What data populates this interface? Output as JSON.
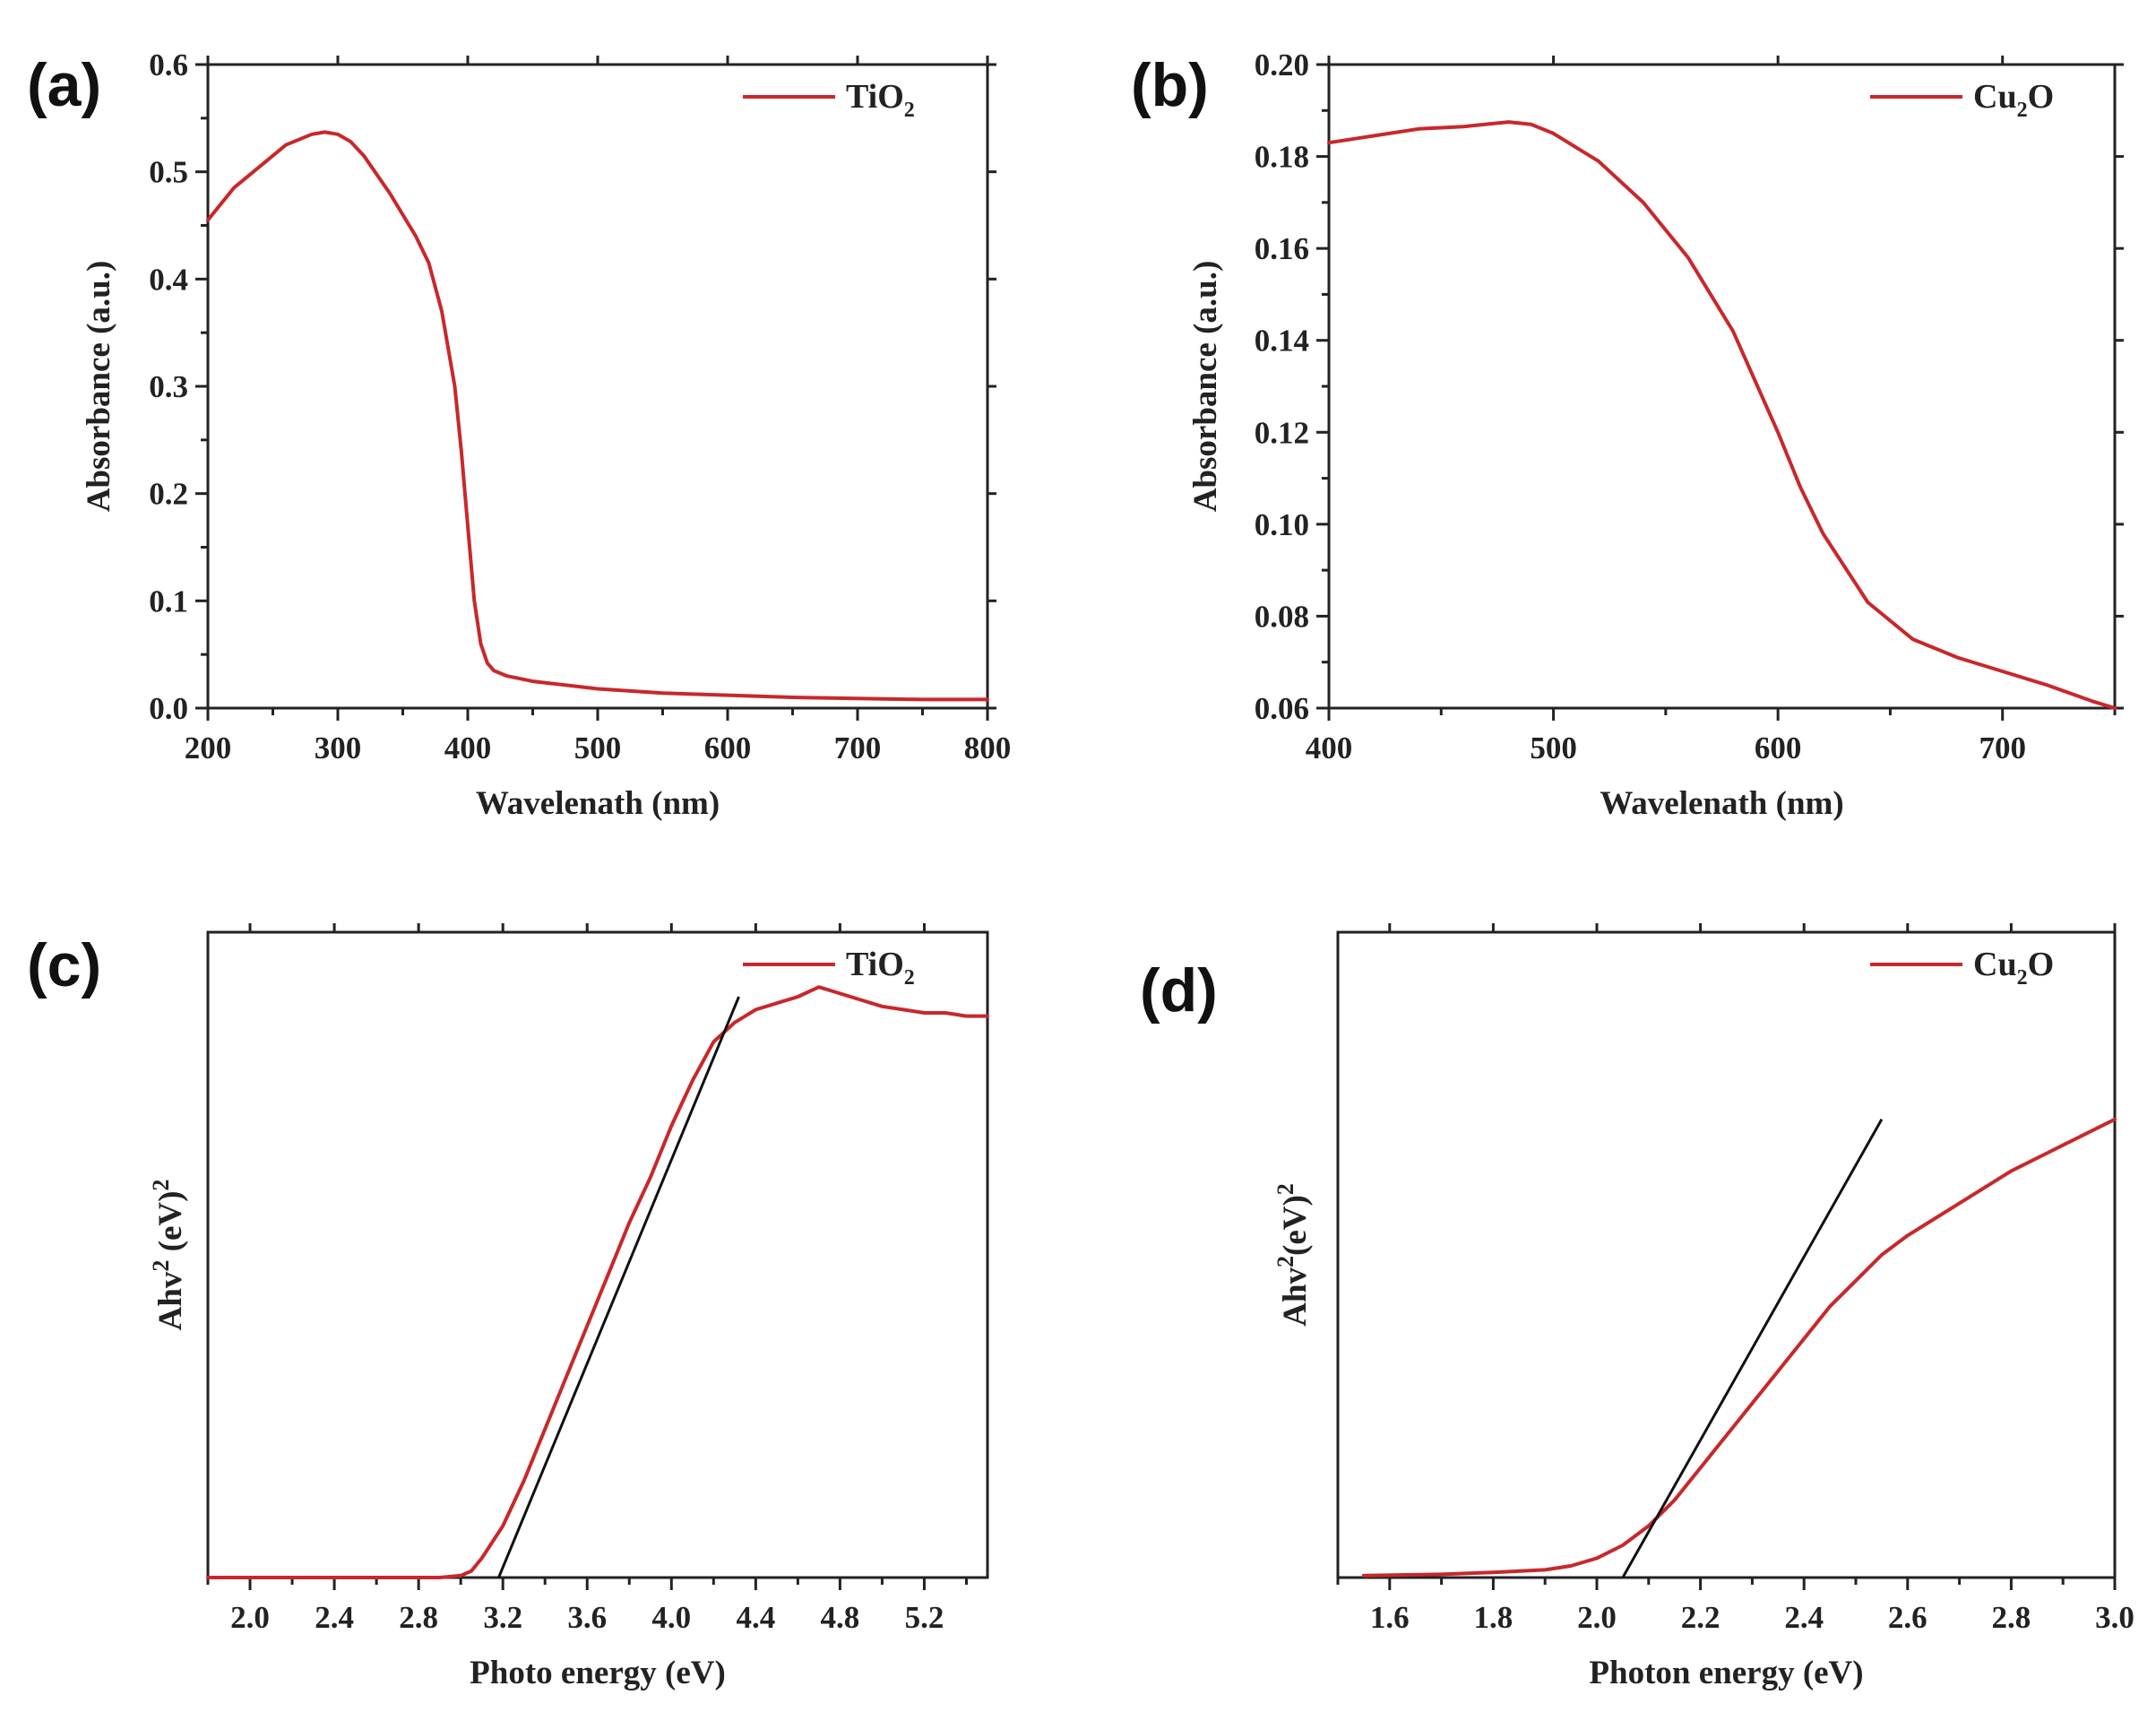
{
  "colors": {
    "series": "#c8282b",
    "fit": "#111111",
    "axis": "#222222"
  },
  "chart_data": [
    {
      "id": "a",
      "panel_label": "(a)",
      "type": "line",
      "xlabel": "Wavelenath (nm)",
      "ylabel": "Absorbance (a.u.)",
      "xlim": [
        200,
        800
      ],
      "ylim": [
        0,
        0.6
      ],
      "xticks": [
        200,
        300,
        400,
        500,
        600,
        700,
        800
      ],
      "xtick_labels": [
        "200",
        "300",
        "400",
        "500",
        "600",
        "700",
        "800"
      ],
      "yticks": [
        0,
        0.1,
        0.2,
        0.3,
        0.4,
        0.5,
        0.6
      ],
      "ytick_labels": [
        "0.0",
        "0.1",
        "0.2",
        "0.3",
        "0.4",
        "0.5",
        "0.6"
      ],
      "legend": {
        "base": "TiO",
        "sub": "2",
        "placement": "top-right"
      },
      "series": [
        {
          "name": "TiO2",
          "x": [
            200,
            220,
            240,
            260,
            280,
            290,
            300,
            310,
            320,
            340,
            360,
            370,
            380,
            390,
            395,
            400,
            405,
            410,
            415,
            420,
            430,
            450,
            500,
            550,
            600,
            650,
            700,
            750,
            800
          ],
          "y": [
            0.455,
            0.485,
            0.505,
            0.525,
            0.535,
            0.537,
            0.535,
            0.528,
            0.515,
            0.48,
            0.44,
            0.415,
            0.37,
            0.3,
            0.24,
            0.17,
            0.1,
            0.06,
            0.042,
            0.035,
            0.03,
            0.025,
            0.018,
            0.014,
            0.012,
            0.01,
            0.009,
            0.008,
            0.008
          ]
        }
      ]
    },
    {
      "id": "b",
      "panel_label": "(b)",
      "type": "line",
      "xlabel": "Wavelenath (nm)",
      "ylabel": "Absorbance (a.u.)",
      "xlim": [
        400,
        750
      ],
      "ylim": [
        0.06,
        0.2
      ],
      "xticks": [
        400,
        500,
        600,
        700
      ],
      "xtick_labels": [
        "400",
        "500",
        "600",
        "700"
      ],
      "yticks": [
        0.06,
        0.08,
        0.1,
        0.12,
        0.14,
        0.16,
        0.18,
        0.2
      ],
      "ytick_labels": [
        "0.06",
        "0.08",
        "0.10",
        "0.12",
        "0.14",
        "0.16",
        "0.18",
        "0.20"
      ],
      "legend": {
        "base": "Cu",
        "sub": "2",
        "tail": "O",
        "placement": "top-right"
      },
      "series": [
        {
          "name": "Cu2O",
          "x": [
            400,
            420,
            440,
            460,
            480,
            490,
            500,
            520,
            540,
            560,
            580,
            600,
            610,
            620,
            640,
            660,
            680,
            700,
            720,
            740,
            750
          ],
          "y": [
            0.183,
            0.1845,
            0.186,
            0.1865,
            0.1875,
            0.187,
            0.185,
            0.179,
            0.17,
            0.158,
            0.142,
            0.12,
            0.108,
            0.098,
            0.083,
            0.075,
            0.071,
            0.068,
            0.065,
            0.0615,
            0.06
          ]
        }
      ]
    },
    {
      "id": "c",
      "panel_label": "(c)",
      "type": "line",
      "xlabel": "Photo energy (eV)",
      "ylabel_base": "Ahv",
      "ylabel_sup": "2",
      "ylabel_mid": " (eV)",
      "ylabel_sup2": "2",
      "xlim": [
        1.8,
        5.5
      ],
      "ylim": [
        0,
        1
      ],
      "xticks": [
        2.0,
        2.4,
        2.8,
        3.2,
        3.6,
        4.0,
        4.4,
        4.8,
        5.2
      ],
      "xtick_labels": [
        "2.0",
        "2.4",
        "2.8",
        "3.2",
        "3.6",
        "4.0",
        "4.4",
        "4.8",
        "5.2"
      ],
      "yticks": [],
      "legend": {
        "base": "TiO",
        "sub": "2",
        "placement": "top-right"
      },
      "series": [
        {
          "name": "TiO2",
          "x": [
            1.8,
            2.2,
            2.6,
            2.9,
            3.0,
            3.05,
            3.1,
            3.2,
            3.3,
            3.4,
            3.5,
            3.6,
            3.7,
            3.8,
            3.9,
            4.0,
            4.1,
            4.2,
            4.3,
            4.4,
            4.5,
            4.6,
            4.7,
            4.8,
            4.9,
            5.0,
            5.1,
            5.2,
            5.3,
            5.4,
            5.5
          ],
          "y": [
            0,
            0,
            0,
            0,
            0.003,
            0.01,
            0.03,
            0.08,
            0.15,
            0.23,
            0.31,
            0.39,
            0.47,
            0.55,
            0.62,
            0.7,
            0.77,
            0.83,
            0.86,
            0.88,
            0.89,
            0.9,
            0.915,
            0.905,
            0.895,
            0.885,
            0.88,
            0.875,
            0.875,
            0.87,
            0.87
          ]
        }
      ],
      "fit_line": {
        "x": [
          3.18,
          4.32
        ],
        "y": [
          0,
          0.9
        ]
      }
    },
    {
      "id": "d",
      "panel_label": "(d)",
      "type": "line",
      "xlabel": "Photon energy (eV)",
      "ylabel_base": "Ahv",
      "ylabel_sup": "2",
      "ylabel_mid": "(eV)",
      "ylabel_sup2": "2",
      "xlim": [
        1.5,
        3.0
      ],
      "ylim": [
        0,
        1
      ],
      "xticks": [
        1.6,
        1.8,
        2.0,
        2.2,
        2.4,
        2.6,
        2.8,
        3.0
      ],
      "xtick_labels": [
        "1.6",
        "1.8",
        "2.0",
        "2.2",
        "2.4",
        "2.6",
        "2.8",
        "3.0"
      ],
      "yticks": [],
      "legend": {
        "base": "Cu",
        "sub": "2",
        "tail": "O",
        "placement": "top-right"
      },
      "series": [
        {
          "name": "Cu2O",
          "x": [
            1.55,
            1.7,
            1.8,
            1.9,
            1.95,
            2.0,
            2.05,
            2.1,
            2.15,
            2.2,
            2.25,
            2.3,
            2.35,
            2.4,
            2.45,
            2.5,
            2.55,
            2.6,
            2.7,
            2.8,
            2.9,
            3.0
          ],
          "y": [
            0.003,
            0.005,
            0.008,
            0.012,
            0.018,
            0.03,
            0.05,
            0.08,
            0.12,
            0.17,
            0.22,
            0.27,
            0.32,
            0.37,
            0.42,
            0.46,
            0.5,
            0.53,
            0.58,
            0.63,
            0.67,
            0.71
          ]
        }
      ],
      "fit_line": {
        "x": [
          2.05,
          2.55
        ],
        "y": [
          0,
          0.71
        ]
      }
    }
  ]
}
